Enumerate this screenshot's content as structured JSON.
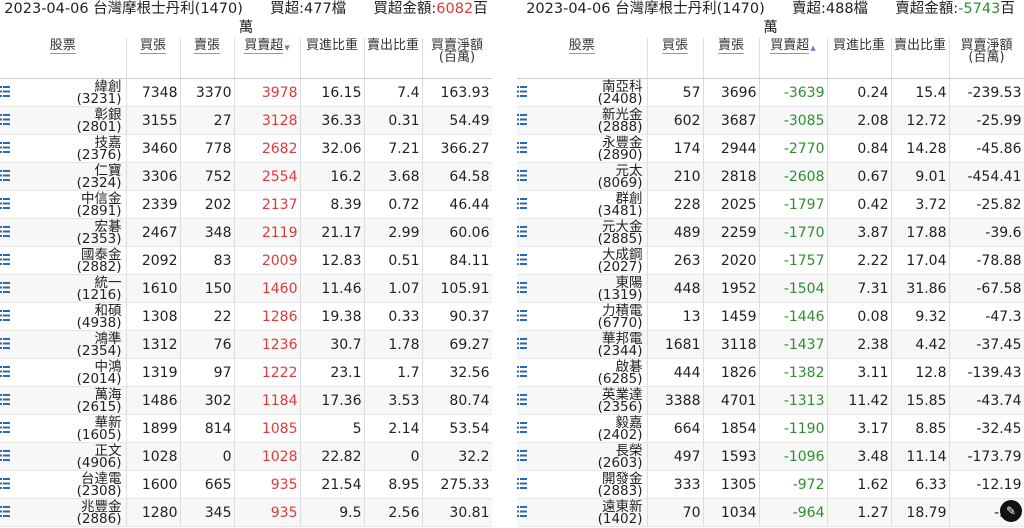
{
  "left": {
    "header": {
      "line1_prefix": "2023-04-06 台灣摩根士丹利(1470)",
      "net_label": "買超:477檔",
      "amount_label": "買超金額:",
      "amount_value": "6082",
      "amount_unit_a": "百",
      "amount_unit_b": "萬"
    },
    "columns": [
      "股票",
      "買張",
      "賣張",
      "買賣超",
      "買進比重",
      "賣出比重",
      "買賣淨額(百萬)"
    ],
    "rows": [
      {
        "name": "緯創",
        "code": "(3231)",
        "buy": "7348",
        "sell": "3370",
        "net": "3978",
        "buy_pct": "16.15",
        "sell_pct": "7.4",
        "amount": "163.93"
      },
      {
        "name": "彰銀",
        "code": "(2801)",
        "buy": "3155",
        "sell": "27",
        "net": "3128",
        "buy_pct": "36.33",
        "sell_pct": "0.31",
        "amount": "54.49"
      },
      {
        "name": "技嘉",
        "code": "(2376)",
        "buy": "3460",
        "sell": "778",
        "net": "2682",
        "buy_pct": "32.06",
        "sell_pct": "7.21",
        "amount": "366.27"
      },
      {
        "name": "仁寶",
        "code": "(2324)",
        "buy": "3306",
        "sell": "752",
        "net": "2554",
        "buy_pct": "16.2",
        "sell_pct": "3.68",
        "amount": "64.58"
      },
      {
        "name": "中信金",
        "code": "(2891)",
        "buy": "2339",
        "sell": "202",
        "net": "2137",
        "buy_pct": "8.39",
        "sell_pct": "0.72",
        "amount": "46.44"
      },
      {
        "name": "宏碁",
        "code": "(2353)",
        "buy": "2467",
        "sell": "348",
        "net": "2119",
        "buy_pct": "21.17",
        "sell_pct": "2.99",
        "amount": "60.06"
      },
      {
        "name": "國泰金",
        "code": "(2882)",
        "buy": "2092",
        "sell": "83",
        "net": "2009",
        "buy_pct": "12.83",
        "sell_pct": "0.51",
        "amount": "84.11"
      },
      {
        "name": "統一",
        "code": "(1216)",
        "buy": "1610",
        "sell": "150",
        "net": "1460",
        "buy_pct": "11.46",
        "sell_pct": "1.07",
        "amount": "105.91"
      },
      {
        "name": "和碩",
        "code": "(4938)",
        "buy": "1308",
        "sell": "22",
        "net": "1286",
        "buy_pct": "19.38",
        "sell_pct": "0.33",
        "amount": "90.37"
      },
      {
        "name": "鴻準",
        "code": "(2354)",
        "buy": "1312",
        "sell": "76",
        "net": "1236",
        "buy_pct": "30.7",
        "sell_pct": "1.78",
        "amount": "69.27"
      },
      {
        "name": "中鴻",
        "code": "(2014)",
        "buy": "1319",
        "sell": "97",
        "net": "1222",
        "buy_pct": "23.1",
        "sell_pct": "1.7",
        "amount": "32.56"
      },
      {
        "name": "萬海",
        "code": "(2615)",
        "buy": "1486",
        "sell": "302",
        "net": "1184",
        "buy_pct": "17.36",
        "sell_pct": "3.53",
        "amount": "80.74"
      },
      {
        "name": "華新",
        "code": "(1605)",
        "buy": "1899",
        "sell": "814",
        "net": "1085",
        "buy_pct": "5",
        "sell_pct": "2.14",
        "amount": "53.54"
      },
      {
        "name": "正文",
        "code": "(4906)",
        "buy": "1028",
        "sell": "0",
        "net": "1028",
        "buy_pct": "22.82",
        "sell_pct": "0",
        "amount": "32.2"
      },
      {
        "name": "台達電",
        "code": "(2308)",
        "buy": "1600",
        "sell": "665",
        "net": "935",
        "buy_pct": "21.54",
        "sell_pct": "8.95",
        "amount": "275.33"
      },
      {
        "name": "兆豐金",
        "code": "(2886)",
        "buy": "1280",
        "sell": "345",
        "net": "935",
        "buy_pct": "9.5",
        "sell_pct": "2.56",
        "amount": "30.81"
      }
    ]
  },
  "right": {
    "header": {
      "line1_prefix": "2023-04-06 台灣摩根士丹利(1470)",
      "net_label": "賣超:488檔",
      "amount_label": "賣超金額:",
      "amount_value": "-5743",
      "amount_unit_a": "百",
      "amount_unit_b": "萬"
    },
    "columns": [
      "股票",
      "買張",
      "賣張",
      "買賣超",
      "買進比重",
      "賣出比重",
      "買賣淨額(百萬)"
    ],
    "rows": [
      {
        "name": "南亞科",
        "code": "(2408)",
        "buy": "57",
        "sell": "3696",
        "net": "-3639",
        "buy_pct": "0.24",
        "sell_pct": "15.4",
        "amount": "-239.53"
      },
      {
        "name": "新光金",
        "code": "(2888)",
        "buy": "602",
        "sell": "3687",
        "net": "-3085",
        "buy_pct": "2.08",
        "sell_pct": "12.72",
        "amount": "-25.99"
      },
      {
        "name": "永豐金",
        "code": "(2890)",
        "buy": "174",
        "sell": "2944",
        "net": "-2770",
        "buy_pct": "0.84",
        "sell_pct": "14.28",
        "amount": "-45.86"
      },
      {
        "name": "元太",
        "code": "(8069)",
        "buy": "210",
        "sell": "2818",
        "net": "-2608",
        "buy_pct": "0.67",
        "sell_pct": "9.01",
        "amount": "-454.41"
      },
      {
        "name": "群創",
        "code": "(3481)",
        "buy": "228",
        "sell": "2025",
        "net": "-1797",
        "buy_pct": "0.42",
        "sell_pct": "3.72",
        "amount": "-25.82"
      },
      {
        "name": "元大金",
        "code": "(2885)",
        "buy": "489",
        "sell": "2259",
        "net": "-1770",
        "buy_pct": "3.87",
        "sell_pct": "17.88",
        "amount": "-39.6"
      },
      {
        "name": "大成鋼",
        "code": "(2027)",
        "buy": "263",
        "sell": "2020",
        "net": "-1757",
        "buy_pct": "2.22",
        "sell_pct": "17.04",
        "amount": "-78.88"
      },
      {
        "name": "東陽",
        "code": "(1319)",
        "buy": "448",
        "sell": "1952",
        "net": "-1504",
        "buy_pct": "7.31",
        "sell_pct": "31.86",
        "amount": "-67.58"
      },
      {
        "name": "力積電",
        "code": "(6770)",
        "buy": "13",
        "sell": "1459",
        "net": "-1446",
        "buy_pct": "0.08",
        "sell_pct": "9.32",
        "amount": "-47.3"
      },
      {
        "name": "華邦電",
        "code": "(2344)",
        "buy": "1681",
        "sell": "3118",
        "net": "-1437",
        "buy_pct": "2.38",
        "sell_pct": "4.42",
        "amount": "-37.45"
      },
      {
        "name": "啟碁",
        "code": "(6285)",
        "buy": "444",
        "sell": "1826",
        "net": "-1382",
        "buy_pct": "3.11",
        "sell_pct": "12.8",
        "amount": "-139.43"
      },
      {
        "name": "英業達",
        "code": "(2356)",
        "buy": "3388",
        "sell": "4701",
        "net": "-1313",
        "buy_pct": "11.42",
        "sell_pct": "15.85",
        "amount": "-43.74"
      },
      {
        "name": "毅嘉",
        "code": "(2402)",
        "buy": "664",
        "sell": "1854",
        "net": "-1190",
        "buy_pct": "3.17",
        "sell_pct": "8.85",
        "amount": "-32.45"
      },
      {
        "name": "長榮",
        "code": "(2603)",
        "buy": "497",
        "sell": "1593",
        "net": "-1096",
        "buy_pct": "3.48",
        "sell_pct": "11.14",
        "amount": "-173.79"
      },
      {
        "name": "開發金",
        "code": "(2883)",
        "buy": "333",
        "sell": "1305",
        "net": "-972",
        "buy_pct": "1.62",
        "sell_pct": "6.33",
        "amount": "-12.19"
      },
      {
        "name": "遠東新",
        "code": "(1402)",
        "buy": "70",
        "sell": "1034",
        "net": "-964",
        "buy_pct": "1.27",
        "sell_pct": "18.79",
        "amount": "-30."
      }
    ]
  },
  "colors": {
    "positive": "#e03a3a",
    "negative": "#2f8f2f",
    "icon": "#2b6cb0"
  },
  "icons": {
    "row_icon": "list-icon",
    "sort_icon": "sort-down-icon",
    "chat_button": "chat-icon"
  }
}
